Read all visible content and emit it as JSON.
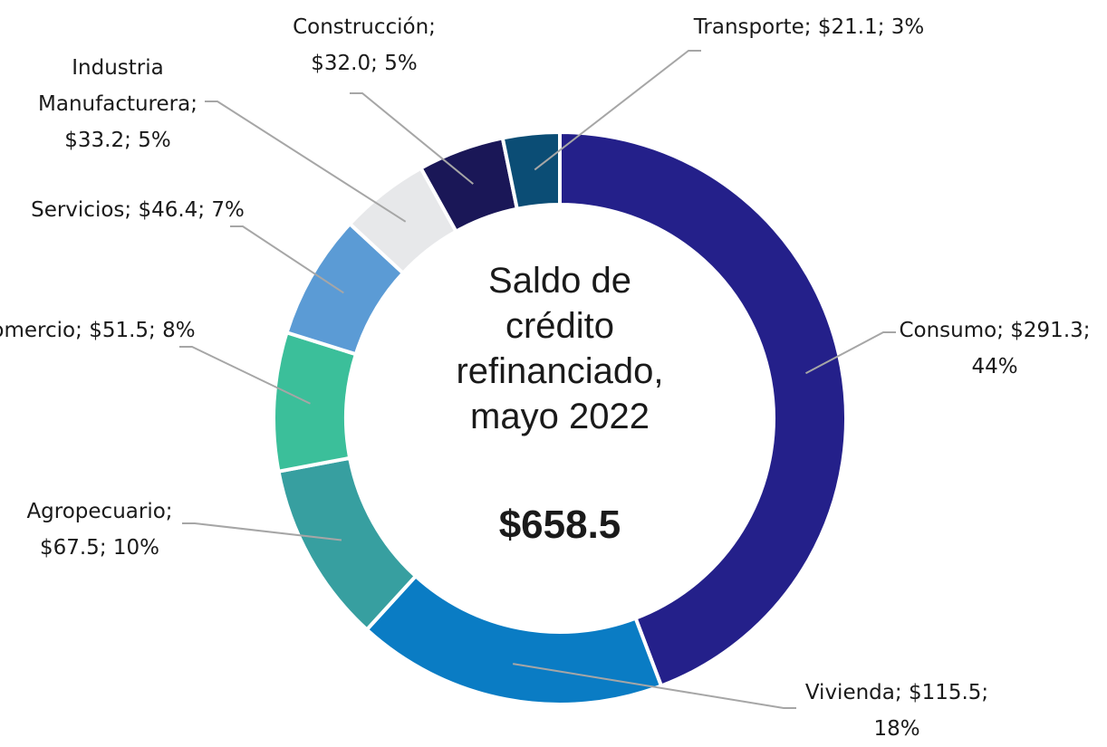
{
  "chart_data": {
    "type": "donut",
    "center_text": "Saldo de crédito refinanciado, mayo 2022",
    "total": 658.5,
    "total_label": "$658.5",
    "separator": "; ",
    "categories": [
      "Consumo",
      "Vivienda",
      "Agropecuario",
      "Comercio",
      "Servicios",
      "Industria Manufacturera",
      "Construcción",
      "Transporte"
    ],
    "values": [
      291.3,
      115.5,
      67.5,
      51.5,
      46.4,
      33.2,
      32.0,
      21.1
    ],
    "value_labels": [
      "$291.3",
      "$115.5",
      "$67.5",
      "$51.5",
      "$46.4",
      "$33.2",
      "$32.0",
      "$21.1"
    ],
    "percent_labels": [
      "44%",
      "18%",
      "10%",
      "8%",
      "7%",
      "5%",
      "5%",
      "3%"
    ],
    "colors": [
      "#24208a",
      "#0a7cc4",
      "#379fa0",
      "#3bbf9a",
      "#5b9bd5",
      "#e7e8ea",
      "#1a1757",
      "#0b4d75"
    ]
  }
}
